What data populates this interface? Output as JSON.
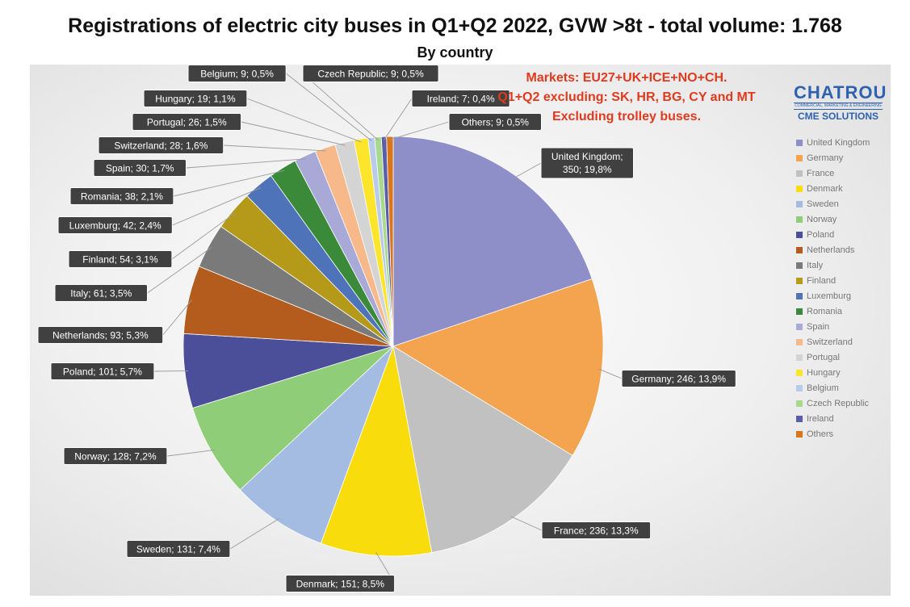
{
  "chart_data": {
    "type": "pie",
    "title": "Registrations of electric city buses in Q1+Q2 2022, GVW >8t - total volume: 1.768",
    "subtitle": "By country",
    "annotations": [
      "Markets: EU27+UK+ICE+NO+CH.",
      "Q1+Q2 excluding: SK, HR, BG, CY and MT",
      "Excluding trolley buses."
    ],
    "legend_position": "right",
    "slices": [
      {
        "name": "United Kingdom",
        "value": 350,
        "label": "United Kingdom;",
        "label2": "350; 19,8%",
        "color": "#8e8fc9"
      },
      {
        "name": "Germany",
        "value": 246,
        "label": "Germany; 246; 13,9%",
        "color": "#f4a34e"
      },
      {
        "name": "France",
        "value": 236,
        "label": "France; 236; 13,3%",
        "color": "#c1c1c1"
      },
      {
        "name": "Denmark",
        "value": 151,
        "label": "Denmark; 151; 8,5%",
        "color": "#f8dc0c"
      },
      {
        "name": "Sweden",
        "value": 131,
        "label": "Sweden; 131; 7,4%",
        "color": "#a5bce2"
      },
      {
        "name": "Norway",
        "value": 128,
        "label": "Norway; 128; 7,2%",
        "color": "#90cd78"
      },
      {
        "name": "Poland",
        "value": 101,
        "label": "Poland; 101; 5,7%",
        "color": "#4b4f99"
      },
      {
        "name": "Netherlands",
        "value": 93,
        "label": "Netherlands; 93; 5,3%",
        "color": "#b35c1e"
      },
      {
        "name": "Italy",
        "value": 61,
        "label": "Italy; 61; 3,5%",
        "color": "#7a7a7a"
      },
      {
        "name": "Finland",
        "value": 54,
        "label": "Finland; 54; 3,1%",
        "color": "#b59a1a"
      },
      {
        "name": "Luxemburg",
        "value": 42,
        "label": "Luxemburg; 42; 2,4%",
        "color": "#4f73b8"
      },
      {
        "name": "Romania",
        "value": 38,
        "label": "Romania; 38; 2,1%",
        "color": "#3a8a3a"
      },
      {
        "name": "Spain",
        "value": 30,
        "label": "Spain; 30; 1,7%",
        "color": "#a9a9d8"
      },
      {
        "name": "Switzerland",
        "value": 28,
        "label": "Switzerland; 28; 1,6%",
        "color": "#f7b98a"
      },
      {
        "name": "Portugal",
        "value": 26,
        "label": "Portugal; 26; 1,5%",
        "color": "#d4d4d4"
      },
      {
        "name": "Hungary",
        "value": 19,
        "label": "Hungary; 19; 1,1%",
        "color": "#fce52a"
      },
      {
        "name": "Belgium",
        "value": 9,
        "label": "Belgium; 9; 0,5%",
        "color": "#b8cbea"
      },
      {
        "name": "Czech Republic",
        "value": 9,
        "label": "Czech Republic; 9; 0,5%",
        "color": "#a9d88e"
      },
      {
        "name": "Ireland",
        "value": 7,
        "label": "Ireland; 7; 0,4%",
        "color": "#5a5ea8"
      },
      {
        "name": "Others",
        "value": 9,
        "label": "Others; 9; 0,5%",
        "color": "#d9761c"
      }
    ]
  },
  "logo": {
    "main": "CHATROU",
    "tagline": "COMMERCIAL, MARKETING & ENGINEERING",
    "sub": "CME SOLUTIONS"
  }
}
